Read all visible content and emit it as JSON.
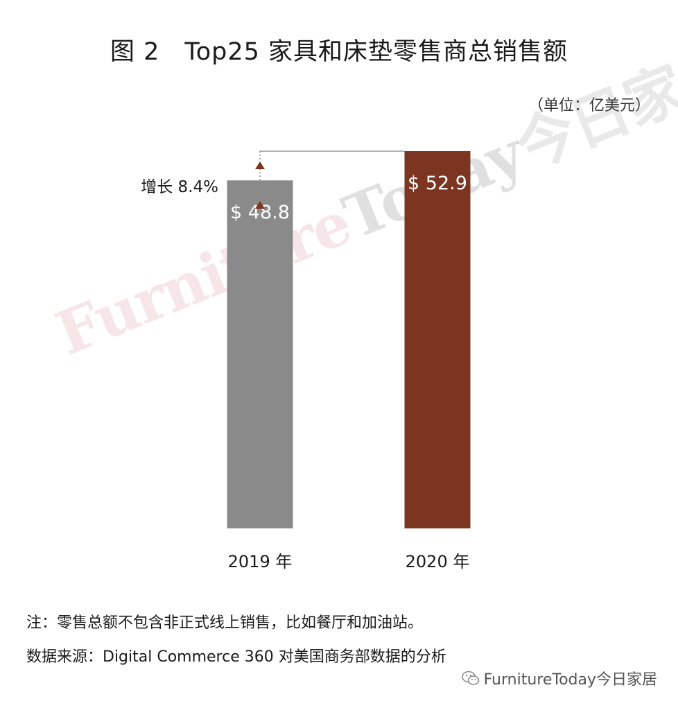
{
  "page": {
    "title": "图 2　Top25 家具和床垫零售商总销售额",
    "unit": "（单位：亿美元）",
    "note": "注：零售总额不包含非正式线上销售，比如餐厅和加油站。",
    "source": "数据来源：Digital Commerce 360 对美国商务部数据的分析",
    "watermark_brand": "FurnitureToday今日家居",
    "watermark_diag_a": "Furniture",
    "watermark_diag_b": "Today",
    "watermark_diag_c": "今日家居"
  },
  "chart_data": {
    "type": "bar",
    "title": "图 2　Top25 家具和床垫零售商总销售额",
    "unit": "（单位：亿美元）",
    "categories": [
      "2019 年",
      "2020 年"
    ],
    "values": [
      48.8,
      52.9
    ],
    "value_labels": [
      "$ 48.8",
      "$ 52.9"
    ],
    "colors": [
      "#8a8a8a",
      "#7b3520"
    ],
    "annotation": "增长 8.4%",
    "annotation_color": "#7b3520",
    "ylim": [
      0,
      52.9
    ],
    "grid": false
  }
}
